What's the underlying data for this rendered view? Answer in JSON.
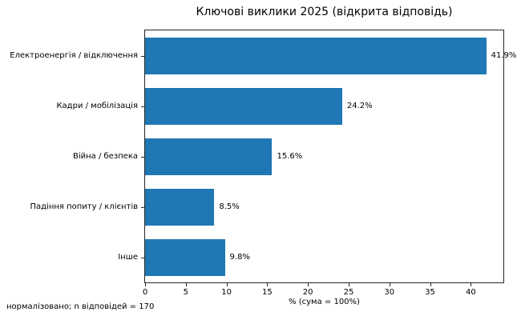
{
  "chart_data": {
    "type": "bar",
    "orientation": "horizontal",
    "title": "Ключові виклики 2025 (відкрита відповідь)",
    "categories": [
      "Електроенергія / відключення",
      "Кадри / мобілізація",
      "Війна / безпека",
      "Падіння попиту / клієнтів",
      "Інше"
    ],
    "values": [
      41.9,
      24.2,
      15.6,
      8.5,
      9.8
    ],
    "value_labels": [
      "41.9%",
      "24.2%",
      "15.6%",
      "8.5%",
      "9.8%"
    ],
    "xlabel": "% (сума = 100%)",
    "xlim": [
      0,
      44
    ],
    "xticks": [
      0,
      5,
      10,
      15,
      20,
      25,
      30,
      35,
      40
    ],
    "bar_color": "#1f77b4",
    "axis_color": "#262626",
    "footnote": "нормалізовано; n відповідей = 170",
    "grid": false,
    "legend_position": "none"
  }
}
